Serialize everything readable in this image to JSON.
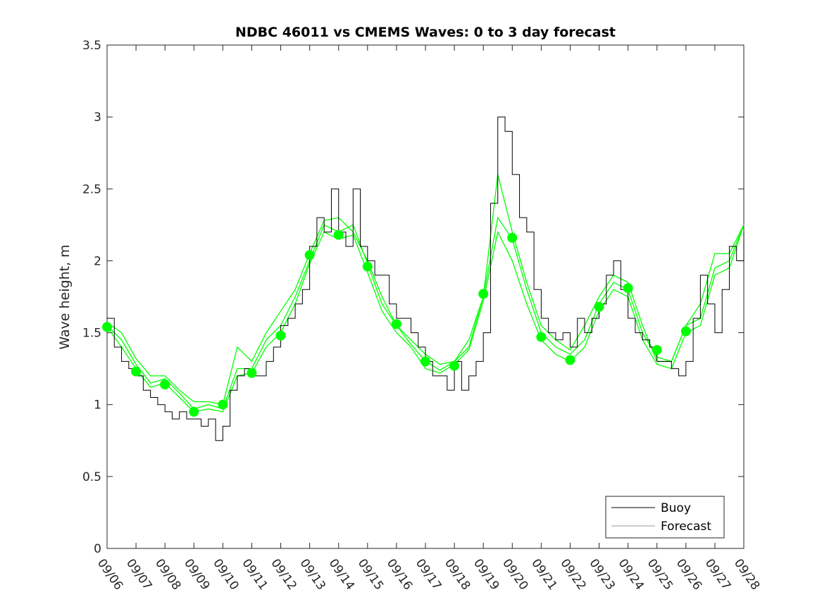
{
  "chart_data": {
    "type": "line",
    "title": "NDBC 46011 vs CMEMS Waves: 0 to 3 day forecast",
    "xlabel": "",
    "ylabel": "Wave height, m",
    "ylim": [
      0,
      3.5
    ],
    "yticks": [
      "0",
      "0.5",
      "1",
      "1.5",
      "2",
      "2.5",
      "3",
      "3.5"
    ],
    "ytick_values": [
      0,
      0.5,
      1,
      1.5,
      2,
      2.5,
      3,
      3.5
    ],
    "xlim_days": [
      0,
      22
    ],
    "xticks": [
      "09/06",
      "09/07",
      "09/08",
      "09/09",
      "09/10",
      "09/11",
      "09/12",
      "09/13",
      "09/14",
      "09/15",
      "09/16",
      "09/17",
      "09/18",
      "09/19",
      "09/20",
      "09/21",
      "09/22",
      "09/23",
      "09/24",
      "09/25",
      "09/26",
      "09/27",
      "09/28"
    ],
    "legend": {
      "placement": "bottom-right",
      "entries": [
        "Buoy",
        "Forecast"
      ]
    },
    "colors": {
      "buoy": "#000000",
      "forecast": "#00ff00"
    },
    "buoy": {
      "name": "Buoy",
      "step_days": 0.25,
      "values": [
        1.6,
        1.4,
        1.3,
        1.25,
        1.2,
        1.1,
        1.05,
        1.0,
        0.95,
        0.9,
        0.95,
        0.9,
        0.9,
        0.85,
        0.9,
        0.75,
        0.85,
        1.1,
        1.2,
        1.25,
        1.2,
        1.2,
        1.3,
        1.4,
        1.55,
        1.6,
        1.7,
        1.8,
        2.1,
        2.3,
        2.2,
        2.5,
        2.2,
        2.1,
        2.5,
        2.1,
        2.0,
        1.9,
        1.9,
        1.7,
        1.6,
        1.6,
        1.5,
        1.4,
        1.3,
        1.2,
        1.2,
        1.1,
        1.3,
        1.1,
        1.2,
        1.3,
        1.5,
        2.4,
        3.0,
        2.9,
        2.6,
        2.3,
        2.2,
        1.8,
        1.6,
        1.5,
        1.45,
        1.5,
        1.4,
        1.6,
        1.5,
        1.6,
        1.7,
        1.9,
        2.0,
        1.8,
        1.6,
        1.5,
        1.45,
        1.4,
        1.3,
        1.3,
        1.25,
        1.2,
        1.3,
        1.6,
        1.9,
        1.7,
        1.5,
        1.8,
        2.1,
        2.0,
        2.2
      ]
    },
    "forecast_series": [
      {
        "name": "Forecast",
        "step_days": 0.5,
        "values": [
          1.55,
          1.45,
          1.28,
          1.15,
          1.18,
          1.08,
          0.97,
          1.0,
          0.97,
          1.25,
          1.25,
          1.45,
          1.55,
          1.75,
          2.0,
          2.25,
          2.2,
          2.25,
          1.98,
          1.7,
          1.55,
          1.42,
          1.3,
          1.24,
          1.3,
          1.4,
          1.75,
          2.3,
          2.15,
          1.8,
          1.5,
          1.4,
          1.35,
          1.45,
          1.7,
          1.85,
          1.8,
          1.5,
          1.33,
          1.3,
          1.55,
          1.6,
          1.95,
          2.0,
          2.25
        ]
      },
      {
        "name": "Forecast",
        "step_days": 0.5,
        "values": [
          1.57,
          1.5,
          1.32,
          1.2,
          1.2,
          1.1,
          1.02,
          1.02,
          1.0,
          1.4,
          1.3,
          1.5,
          1.65,
          1.8,
          2.05,
          2.28,
          2.3,
          2.2,
          2.0,
          1.75,
          1.55,
          1.45,
          1.35,
          1.28,
          1.3,
          1.45,
          1.75,
          2.6,
          2.2,
          1.85,
          1.55,
          1.45,
          1.38,
          1.55,
          1.75,
          1.9,
          1.85,
          1.55,
          1.3,
          1.3,
          1.55,
          1.7,
          2.05,
          2.05,
          2.25
        ]
      },
      {
        "name": "Forecast",
        "step_days": 0.5,
        "values": [
          1.54,
          1.4,
          1.25,
          1.12,
          1.15,
          1.05,
          0.95,
          0.97,
          0.95,
          1.2,
          1.22,
          1.4,
          1.5,
          1.7,
          1.98,
          2.2,
          2.15,
          2.18,
          1.92,
          1.65,
          1.5,
          1.4,
          1.25,
          1.22,
          1.28,
          1.38,
          1.72,
          2.2,
          2.0,
          1.7,
          1.45,
          1.35,
          1.3,
          1.4,
          1.65,
          1.8,
          1.75,
          1.45,
          1.28,
          1.25,
          1.5,
          1.55,
          1.9,
          1.95,
          2.25
        ]
      }
    ],
    "forecast_start_points": {
      "days": [
        0,
        1,
        2,
        3,
        4,
        5,
        6,
        7,
        8,
        9,
        10,
        11,
        12,
        13,
        14,
        15,
        16,
        17,
        18,
        19,
        20
      ],
      "values": [
        1.54,
        1.23,
        1.14,
        0.95,
        1.0,
        1.22,
        1.48,
        2.04,
        2.18,
        1.96,
        1.56,
        1.3,
        1.27,
        1.77,
        2.16,
        1.47,
        1.31,
        1.68,
        1.81,
        1.38,
        1.51
      ]
    }
  }
}
